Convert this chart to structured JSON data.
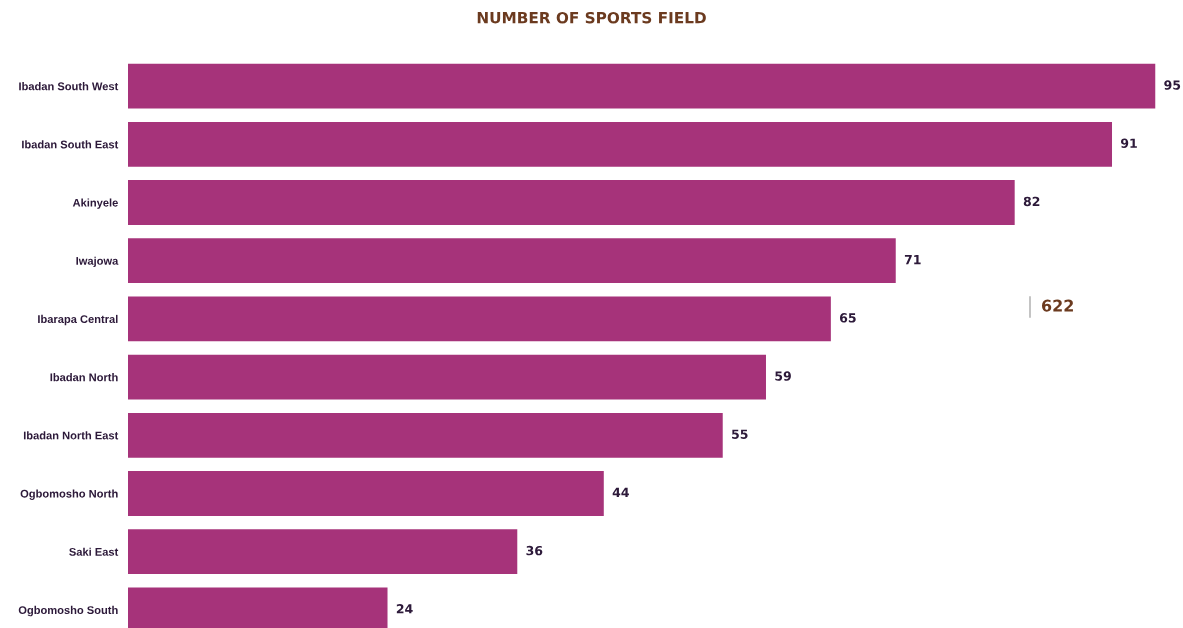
{
  "chart_data": {
    "type": "bar",
    "orientation": "horizontal",
    "title": "NUMBER OF SPORTS FIELD",
    "categories": [
      "Ibadan South West",
      "Ibadan South East",
      "Akinyele",
      "Iwajowa",
      "Ibarapa Central",
      "Ibadan North",
      "Ibadan North East",
      "Ogbomosho North",
      "Saki East",
      "Ogbomosho South"
    ],
    "values": [
      95,
      91,
      82,
      71,
      65,
      59,
      55,
      44,
      36,
      24
    ],
    "color": "#a6337a",
    "data_labels": true,
    "grid": false,
    "legend": false,
    "tick_labels": "y",
    "annotations": [
      "622"
    ]
  }
}
